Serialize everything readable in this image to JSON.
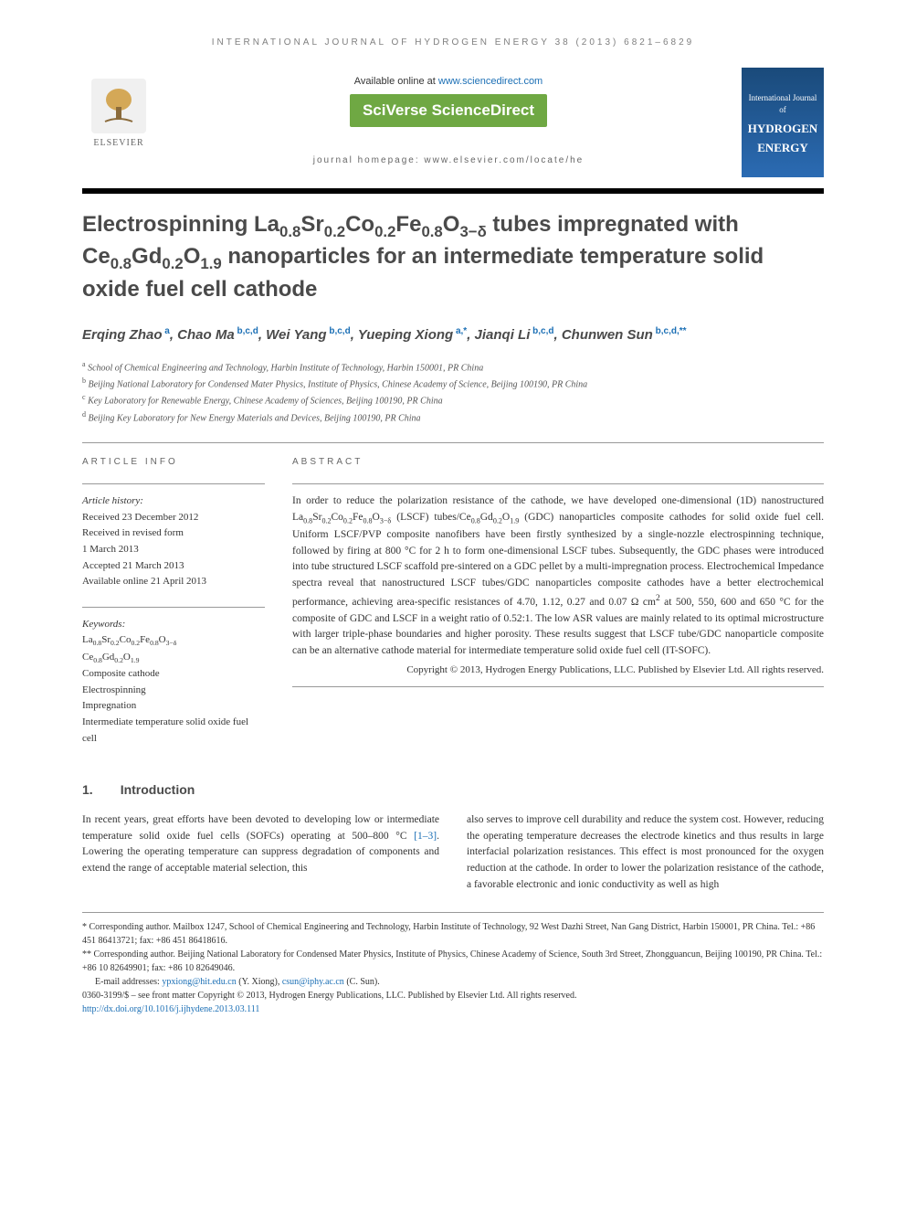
{
  "running_header": "INTERNATIONAL JOURNAL OF HYDROGEN ENERGY 38 (2013) 6821–6829",
  "banner": {
    "available_text_pre": "Available online at ",
    "sd_url": "www.sciencedirect.com",
    "sciverse": "SciVerse ScienceDirect",
    "journal_homepage_label": "journal homepage: ",
    "journal_homepage_url": "www.elsevier.com/locate/he",
    "elsevier": "ELSEVIER",
    "cover_line1": "International Journal of",
    "cover_line2": "HYDROGEN",
    "cover_line3": "ENERGY"
  },
  "title_html": "Electrospinning La<sub>0.8</sub>Sr<sub>0.2</sub>Co<sub>0.2</sub>Fe<sub>0.8</sub>O<sub>3−δ</sub> tubes impregnated with Ce<sub>0.8</sub>Gd<sub>0.2</sub>O<sub>1.9</sub> nanoparticles for an intermediate temperature solid oxide fuel cell cathode",
  "authors_html": "Erqing Zhao<sup> a</sup>, Chao Ma<sup> b,c,d</sup>, Wei Yang<sup> b,c,d</sup>, Yueping Xiong<sup> a,*</sup>, Jianqi Li<sup> b,c,d</sup>, Chunwen Sun<sup> b,c,d,**</sup>",
  "affiliations": [
    "a School of Chemical Engineering and Technology, Harbin Institute of Technology, Harbin 150001, PR China",
    "b Beijing National Laboratory for Condensed Mater Physics, Institute of Physics, Chinese Academy of Science, Beijing 100190, PR China",
    "c Key Laboratory for Renewable Energy, Chinese Academy of Sciences, Beijing 100190, PR China",
    "d Beijing Key Laboratory for New Energy Materials and Devices, Beijing 100190, PR China"
  ],
  "article_info_heading": "ARTICLE INFO",
  "abstract_heading": "ABSTRACT",
  "history": {
    "label": "Article history:",
    "lines": [
      "Received 23 December 2012",
      "Received in revised form",
      "1 March 2013",
      "Accepted 21 March 2013",
      "Available online 21 April 2013"
    ]
  },
  "keywords": {
    "label": "Keywords:",
    "lines_html": [
      "La<sub>0.8</sub>Sr<sub>0.2</sub>Co<sub>0.2</sub>Fe<sub>0.8</sub>O<sub>3−δ</sub>",
      "Ce<sub>0.8</sub>Gd<sub>0.2</sub>O<sub>1.9</sub>",
      "Composite cathode",
      "Electrospinning",
      "Impregnation",
      "Intermediate temperature solid oxide fuel cell"
    ]
  },
  "abstract_html": "In order to reduce the polarization resistance of the cathode, we have developed one-dimensional (1D) nanostructured La<sub>0.8</sub>Sr<sub>0.2</sub>Co<sub>0.2</sub>Fe<sub>0.8</sub>O<sub>3−δ</sub> (LSCF) tubes/Ce<sub>0.8</sub>Gd<sub>0.2</sub>O<sub>1.9</sub> (GDC) nanoparticles composite cathodes for solid oxide fuel cell. Uniform LSCF/PVP composite nanofibers have been firstly synthesized by a single-nozzle electrospinning technique, followed by firing at 800 °C for 2 h to form one-dimensional LSCF tubes. Subsequently, the GDC phases were introduced into tube structured LSCF scaffold pre-sintered on a GDC pellet by a multi-impregnation process. Electrochemical Impedance spectra reveal that nanostructured LSCF tubes/GDC nanoparticles composite cathodes have a better electrochemical performance, achieving area-specific resistances of 4.70, 1.12, 0.27 and 0.07 Ω cm<sup>2</sup> at 500, 550, 600 and 650 °C for the composite of GDC and LSCF in a weight ratio of 0.52:1. The low ASR values are mainly related to its optimal microstructure with larger triple-phase boundaries and higher porosity. These results suggest that LSCF tube/GDC nanoparticle composite can be an alternative cathode material for intermediate temperature solid oxide fuel cell (IT-SOFC).",
  "copyright": "Copyright © 2013, Hydrogen Energy Publications, LLC. Published by Elsevier Ltd. All rights reserved.",
  "section1": {
    "num": "1.",
    "title": "Introduction"
  },
  "body_col1_html": "In recent years, great efforts have been devoted to developing low or intermediate temperature solid oxide fuel cells (SOFCs) operating at 500–800 °C <span class=\"ref-link\">[1–3]</span>. Lowering the operating temperature can suppress degradation of components and extend the range of acceptable material selection, this",
  "body_col2": "also serves to improve cell durability and reduce the system cost. However, reducing the operating temperature decreases the electrode kinetics and thus results in large interfacial polarization resistances. This effect is most pronounced for the oxygen reduction at the cathode. In order to lower the polarization resistance of the cathode, a favorable electronic and ionic conductivity as well as high",
  "footnotes": {
    "corr1": "* Corresponding author. Mailbox 1247, School of Chemical Engineering and Technology, Harbin Institute of Technology, 92 West Dazhi Street, Nan Gang District, Harbin 150001, PR China. Tel.: +86 451 86413721; fax: +86 451 86418616.",
    "corr2": "** Corresponding author. Beijing National Laboratory for Condensed Mater Physics, Institute of Physics, Chinese Academy of Science, South 3rd Street, Zhongguancun, Beijing 100190, PR China. Tel.: +86 10 82649901; fax: +86 10 82649046.",
    "email_label": "E-mail addresses: ",
    "email1": "ypxiong@hit.edu.cn",
    "email1_name": " (Y. Xiong), ",
    "email2": "csun@iphy.ac.cn",
    "email2_name": " (C. Sun).",
    "issn": "0360-3199/$ – see front matter Copyright © 2013, Hydrogen Energy Publications, LLC. Published by Elsevier Ltd. All rights reserved.",
    "doi_label": "http://dx.doi.org/",
    "doi": "10.1016/j.ijhydene.2013.03.111"
  },
  "colors": {
    "accent_green": "#6fa843",
    "link_blue": "#1b6fb5",
    "heading_gray": "#4a4a4a",
    "cover_gradient_top": "#1a4a7a",
    "cover_gradient_bottom": "#2b6bb3"
  }
}
